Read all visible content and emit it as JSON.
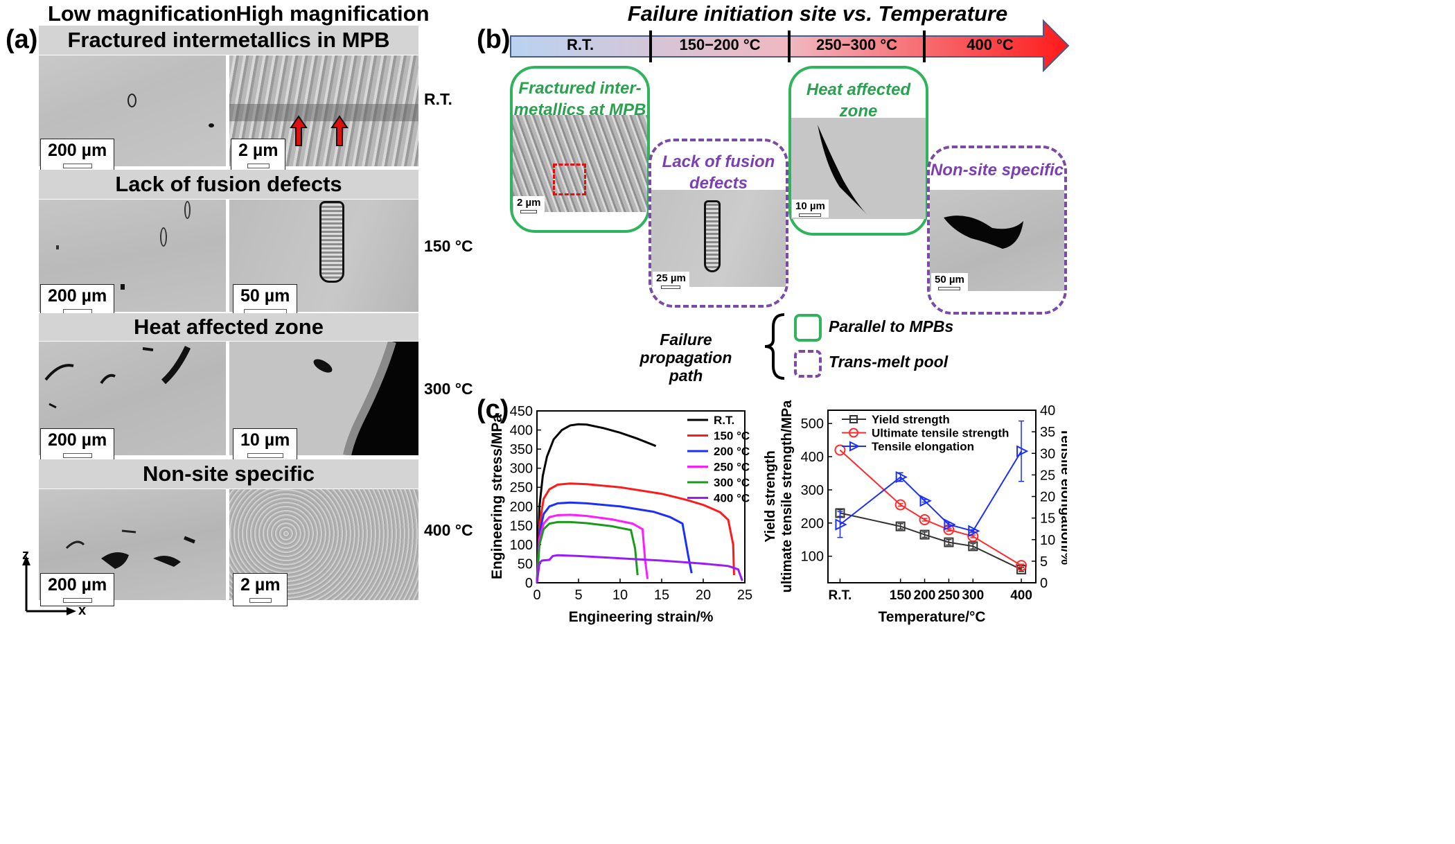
{
  "panel_a": {
    "label": "(a)",
    "col_low": "Low magnification",
    "col_high": "High magnification",
    "rows": [
      {
        "title": "Fractured intermetallics in MPB",
        "low_scale": "200 µm",
        "high_scale": "2 µm",
        "temp": "R.T."
      },
      {
        "title": "Lack of fusion defects",
        "low_scale": "200 µm",
        "high_scale": "50 µm",
        "temp": "150 °C"
      },
      {
        "title": "Heat affected zone",
        "low_scale": "200 µm",
        "high_scale": "10 µm",
        "temp": "300 °C"
      },
      {
        "title": "Non-site specific",
        "low_scale": "200 µm",
        "high_scale": "2 µm",
        "temp": "400 °C"
      }
    ],
    "axis_z": "z",
    "axis_x": "x",
    "arrow_color": "#e01010"
  },
  "panel_b": {
    "label": "(b)",
    "title": "Failure initiation site vs. Temperature",
    "segments": [
      "R.T.",
      "150−200 °C",
      "250−300 °C",
      "400 °C"
    ],
    "boxes": [
      {
        "title_line1": "Fractured inter-",
        "title_line2": "metallics at MPB",
        "scale": "2 µm",
        "style": "solid"
      },
      {
        "title_line1": "Lack of fusion",
        "title_line2": "defects",
        "scale": "25 µm",
        "style": "dashed"
      },
      {
        "title_line1": "Heat affected",
        "title_line2": "zone",
        "scale": "10 µm",
        "style": "solid"
      },
      {
        "title_line1": "Non-site specific",
        "title_line2": "",
        "scale": "50 µm",
        "style": "dashed"
      }
    ],
    "propagation_label_1": "Failure propagation",
    "propagation_label_2": "path",
    "legend_solid": "Parallel to MPBs",
    "legend_dashed": "Trans-melt pool",
    "colors": {
      "solid": "#2fb35c",
      "dashed": "#7a4aa6",
      "arrow_start": "#b9d3f0",
      "arrow_end": "#ff1a1a"
    }
  },
  "panel_c": {
    "label": "(c)"
  },
  "chart_data": [
    {
      "type": "line",
      "xlabel": "Engineering strain/%",
      "ylabel": "Engineering stress/MPa",
      "xlim": [
        0,
        25
      ],
      "ylim": [
        0,
        450
      ],
      "xticks": [
        0,
        5,
        10,
        15,
        20,
        25
      ],
      "yticks": [
        0,
        50,
        100,
        150,
        200,
        250,
        300,
        350,
        400,
        450
      ],
      "legend_position": "top-right",
      "series": [
        {
          "name": "R.T.",
          "color": "#000000",
          "x": [
            0,
            0.3,
            0.7,
            1.2,
            2,
            3,
            4,
            5,
            6,
            8,
            10,
            12,
            13.5,
            14.3
          ],
          "y": [
            0,
            200,
            280,
            330,
            375,
            400,
            412,
            415,
            414,
            405,
            393,
            378,
            365,
            358
          ]
        },
        {
          "name": "150 °C",
          "color": "#ff1a1a",
          "x": [
            0,
            0.3,
            0.8,
            1.5,
            2.5,
            4,
            6,
            10,
            15,
            18,
            20,
            22,
            23,
            23.6,
            23.7
          ],
          "y": [
            0,
            150,
            220,
            245,
            257,
            260,
            258,
            250,
            233,
            217,
            204,
            185,
            165,
            100,
            20
          ]
        },
        {
          "name": "200 °C",
          "color": "#1a2eff",
          "x": [
            0,
            0.3,
            0.8,
            1.5,
            2.5,
            4,
            6,
            10,
            14,
            16,
            17.5,
            18.2,
            18.6
          ],
          "y": [
            0,
            130,
            180,
            200,
            208,
            210,
            208,
            200,
            186,
            172,
            155,
            70,
            25
          ]
        },
        {
          "name": "250 °C",
          "color": "#ff1aff",
          "x": [
            0,
            0.3,
            0.8,
            1.5,
            2.5,
            4,
            6,
            9,
            11.5,
            12.7,
            13.0,
            13.3
          ],
          "y": [
            0,
            115,
            155,
            172,
            177,
            178,
            175,
            166,
            155,
            140,
            60,
            10
          ]
        },
        {
          "name": "300 °C",
          "color": "#1a9a1a",
          "x": [
            0,
            0.3,
            0.8,
            1.5,
            2.5,
            4,
            6,
            9,
            11.3,
            11.8,
            12.1
          ],
          "y": [
            0,
            100,
            140,
            155,
            159,
            159,
            156,
            148,
            138,
            90,
            20
          ]
        },
        {
          "name": "400 °C",
          "color": "#9a1aff",
          "x": [
            0,
            0.3,
            0.6,
            1.5,
            1.9,
            2.5,
            5,
            10,
            15,
            20,
            23,
            24.2,
            24.7
          ],
          "y": [
            0,
            52,
            58,
            60,
            70,
            72,
            70,
            64,
            58,
            50,
            44,
            35,
            5
          ]
        }
      ]
    },
    {
      "type": "line",
      "xlabel": "Temperature/°C",
      "ylabel_left_1": "Yield strength",
      "ylabel_left_2": "ultimate tensile strength/MPa",
      "ylabel_right": "Tensile elongation/%",
      "categories": [
        "R.T.",
        "150",
        "200",
        "250",
        "300",
        "400"
      ],
      "x": [
        25,
        150,
        200,
        250,
        300,
        400
      ],
      "xlim": [
        0,
        430
      ],
      "ylim_left": [
        20,
        540
      ],
      "yticks_left": [
        100,
        200,
        300,
        400,
        500
      ],
      "ylim_right": [
        0,
        40
      ],
      "yticks_right": [
        0,
        5,
        10,
        15,
        20,
        25,
        30,
        35,
        40
      ],
      "legend_position": "top-left",
      "series": [
        {
          "name": "Yield strength",
          "axis": "left",
          "marker": "square",
          "color": "#333333",
          "values": [
            230,
            190,
            165,
            142,
            130,
            60
          ],
          "err": [
            10,
            8,
            8,
            8,
            8,
            6
          ]
        },
        {
          "name": "Ultimate tensile strength",
          "axis": "left",
          "marker": "circle",
          "color": "#ff2a2a",
          "values": [
            420,
            255,
            210,
            180,
            160,
            72
          ],
          "err": [
            0,
            4,
            4,
            4,
            4,
            4
          ]
        },
        {
          "name": "Tensile elongation",
          "axis": "right",
          "marker": "triangle-right",
          "color": "#1a2eff",
          "values": [
            13.5,
            24.5,
            19.0,
            13.5,
            12.0,
            30.5
          ],
          "err": [
            3.0,
            1.0,
            0.3,
            0.4,
            0.3,
            7.0
          ]
        }
      ]
    }
  ]
}
